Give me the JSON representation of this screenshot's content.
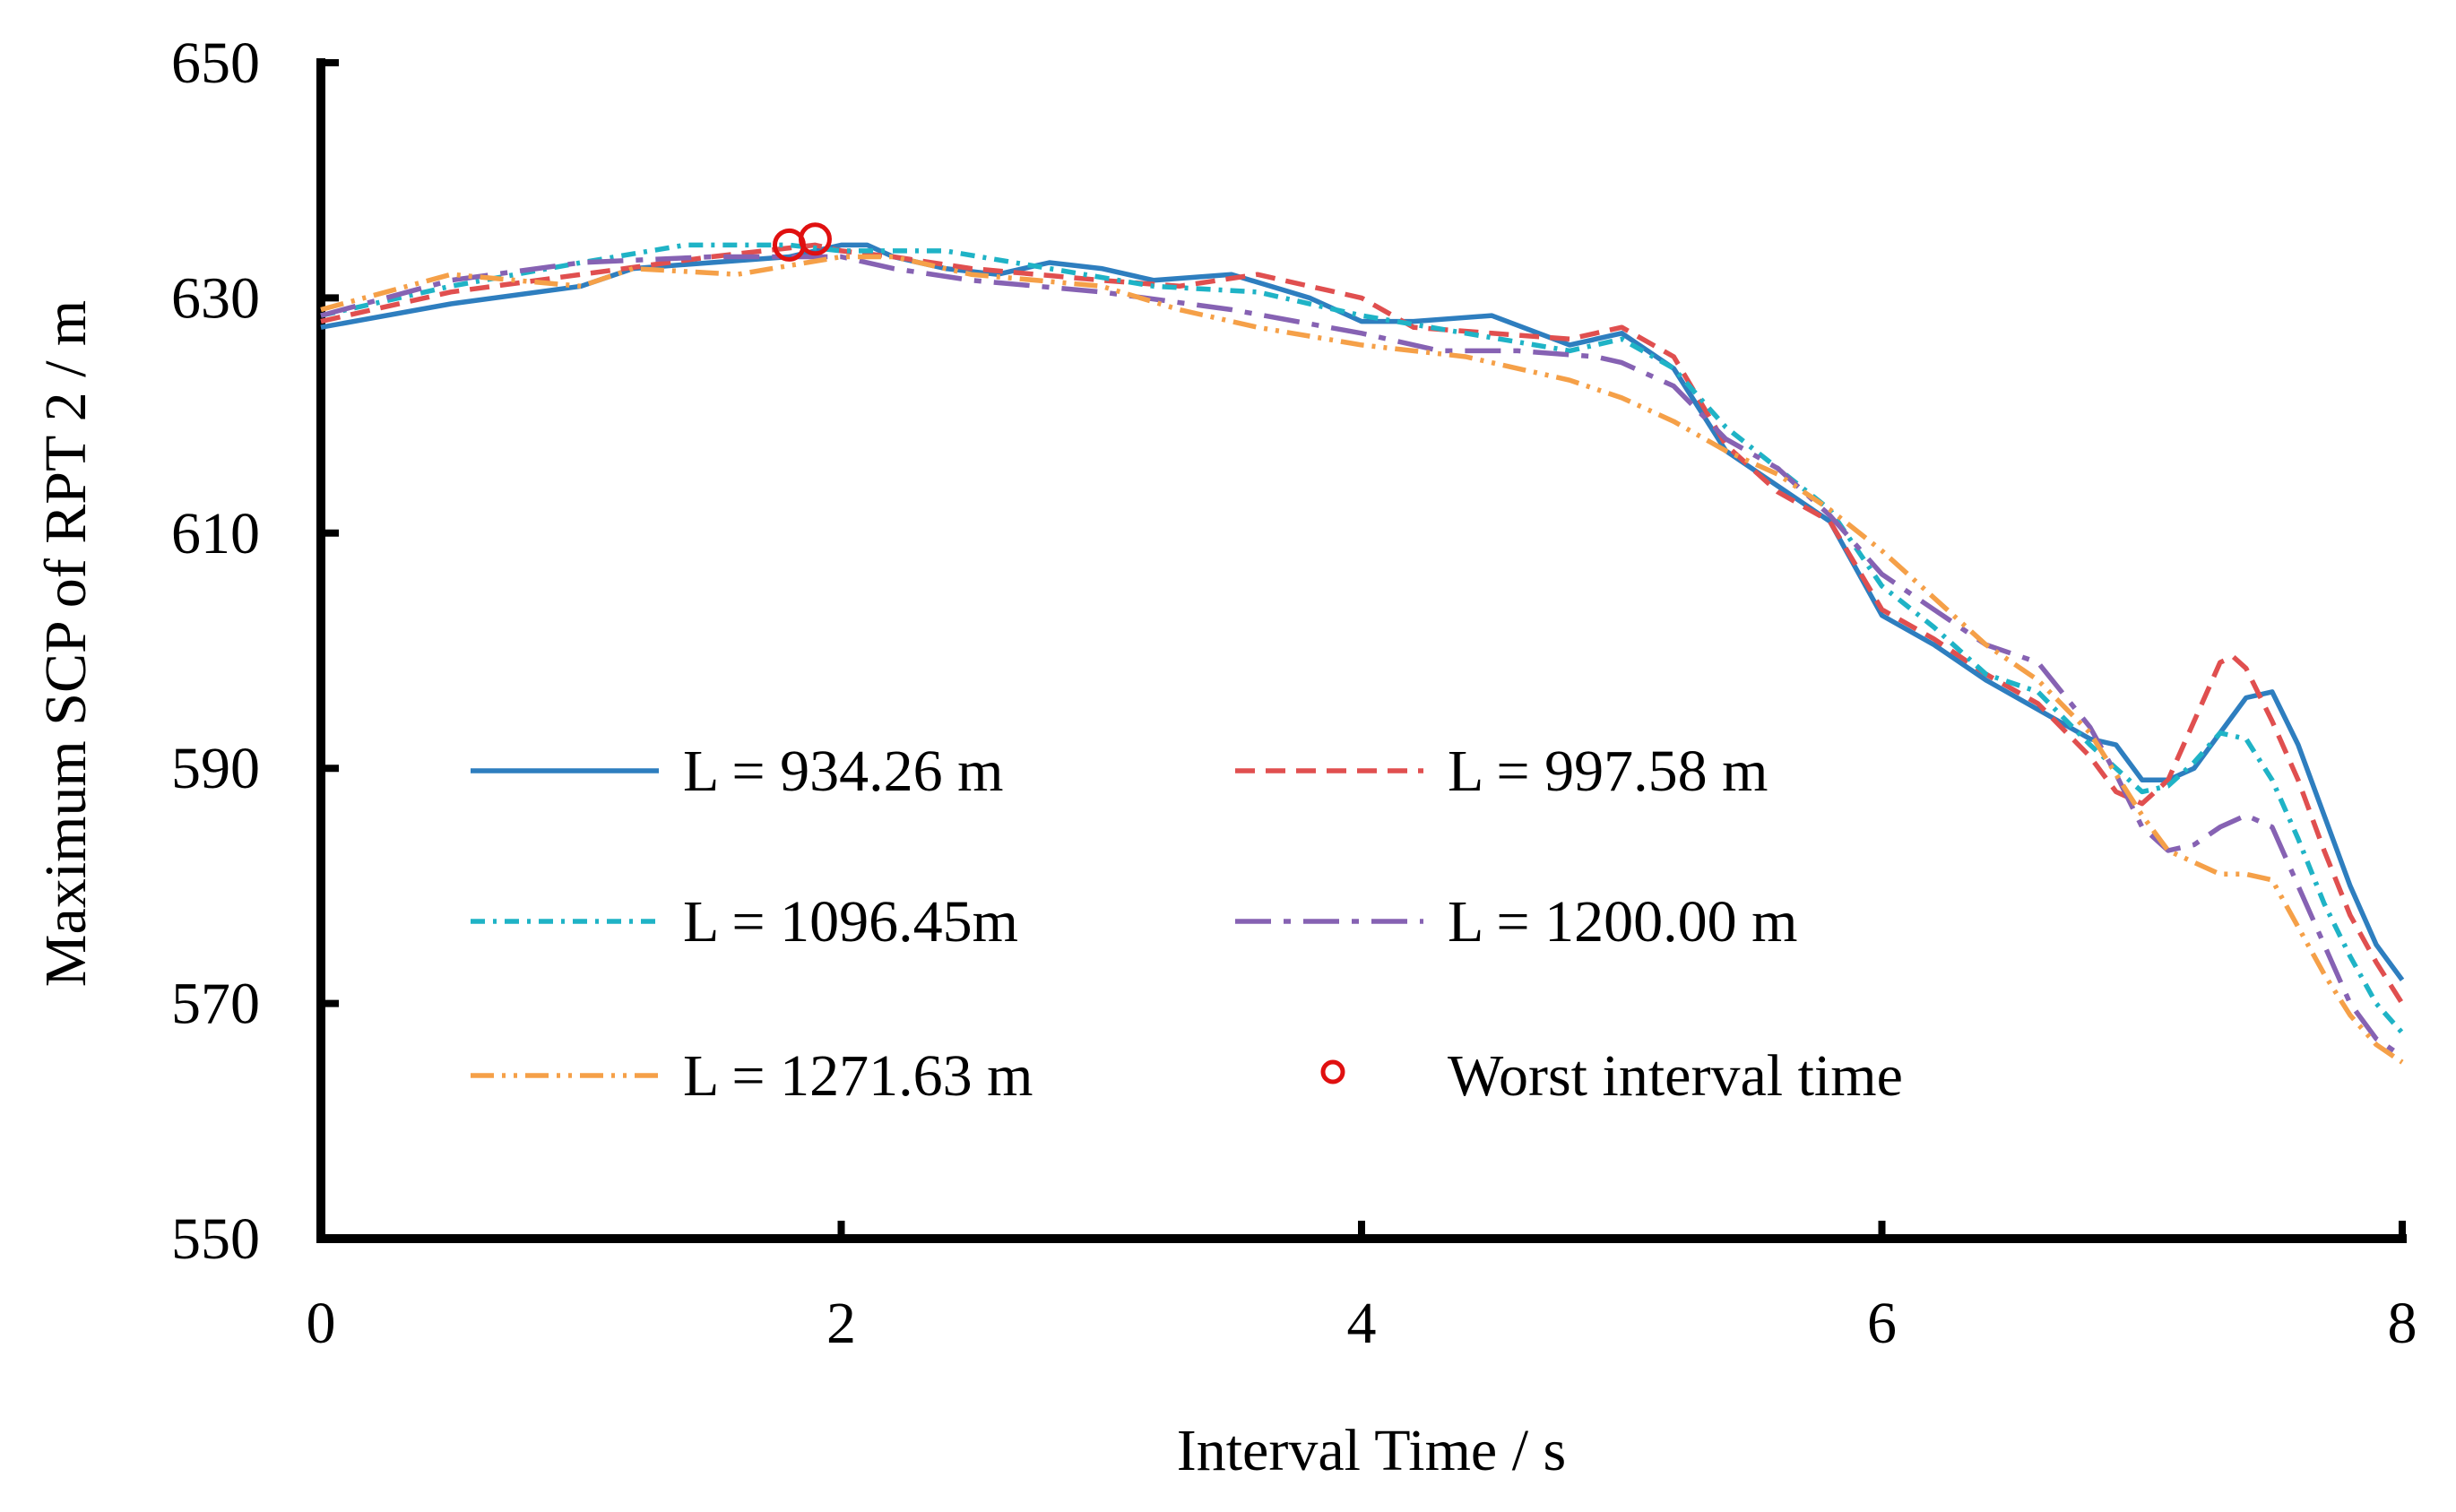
{
  "chart_data": {
    "type": "line",
    "xlabel": "Interval Time / s",
    "ylabel": "Maximum SCP of  RPT 2 / m",
    "xlim": [
      0,
      8
    ],
    "ylim": [
      550,
      650
    ],
    "xticks": [
      0,
      2,
      4,
      6,
      8
    ],
    "yticks": [
      550,
      570,
      590,
      610,
      630,
      650
    ],
    "grid": false,
    "legend_position": "inside, lower-left, 3 rows x 2 columns",
    "series": [
      {
        "name": "L = 934.26 m",
        "color": "#2e7ebf",
        "dash": "solid",
        "x": [
          0,
          0.5,
          1.0,
          1.2,
          1.5,
          1.8,
          2.0,
          2.1,
          2.2,
          2.4,
          2.6,
          2.8,
          3.0,
          3.2,
          3.5,
          3.8,
          4.0,
          4.2,
          4.5,
          4.8,
          5.0,
          5.2,
          5.4,
          5.6,
          5.8,
          6.0,
          6.2,
          6.4,
          6.6,
          6.8,
          6.9,
          7.0,
          7.1,
          7.2,
          7.3,
          7.4,
          7.5,
          7.6,
          7.7,
          7.8,
          7.9,
          8.0
        ],
        "y": [
          627.5,
          629.5,
          631.0,
          632.5,
          633.0,
          633.5,
          634.5,
          634.5,
          633.5,
          632.5,
          632.0,
          633.0,
          632.5,
          631.5,
          632.0,
          630.0,
          628.0,
          628.0,
          628.5,
          626.0,
          627.0,
          624.0,
          617.0,
          614.0,
          611.0,
          603.0,
          600.5,
          597.5,
          595.0,
          592.5,
          592.0,
          589.0,
          589.0,
          590.0,
          593.0,
          596.0,
          596.5,
          592.0,
          586.0,
          580.0,
          575.0,
          572.0
        ]
      },
      {
        "name": "L = 997.58 m",
        "color": "#e04f4f",
        "dash": "short-dash",
        "x": [
          0,
          0.5,
          1.0,
          1.5,
          1.9,
          2.0,
          2.2,
          2.5,
          3.0,
          3.3,
          3.6,
          4.0,
          4.2,
          4.5,
          4.8,
          5.0,
          5.2,
          5.4,
          5.6,
          5.8,
          6.0,
          6.2,
          6.4,
          6.6,
          6.8,
          6.9,
          7.0,
          7.1,
          7.2,
          7.3,
          7.35,
          7.4,
          7.5,
          7.6,
          7.7,
          7.8,
          7.9,
          8.0
        ],
        "y": [
          628.0,
          630.5,
          632.0,
          633.5,
          634.5,
          634.0,
          633.5,
          632.5,
          631.5,
          631.0,
          632.0,
          630.0,
          627.5,
          627.0,
          626.5,
          627.5,
          625.0,
          617.5,
          613.5,
          611.0,
          603.5,
          601.0,
          598.0,
          595.5,
          591.0,
          588.0,
          587.0,
          589.0,
          594.0,
          599.0,
          599.5,
          598.5,
          594.0,
          589.0,
          583.0,
          577.5,
          573.5,
          570.0
        ]
      },
      {
        "name": "L = 1096.45m",
        "color": "#1fb3c6",
        "dash": "dash-dot",
        "x": [
          0,
          0.5,
          1.0,
          1.4,
          1.8,
          2.0,
          2.4,
          2.8,
          3.2,
          3.6,
          4.0,
          4.4,
          4.8,
          5.0,
          5.2,
          5.4,
          5.6,
          5.8,
          6.0,
          6.2,
          6.4,
          6.6,
          6.8,
          6.9,
          7.0,
          7.1,
          7.2,
          7.3,
          7.4,
          7.5,
          7.6,
          7.7,
          7.8,
          7.9,
          8.0
        ],
        "y": [
          628.5,
          631.0,
          633.0,
          634.5,
          634.5,
          634.0,
          634.0,
          632.5,
          631.0,
          630.5,
          628.5,
          627.0,
          625.5,
          626.5,
          624.0,
          619.0,
          615.5,
          612.0,
          605.5,
          602.0,
          598.0,
          596.5,
          592.0,
          590.0,
          588.0,
          588.5,
          590.5,
          593.0,
          592.5,
          589.0,
          584.0,
          578.5,
          574.0,
          570.0,
          567.5
        ]
      },
      {
        "name": "L = 1200.00 m",
        "color": "#8662b3",
        "dash": "long-dash",
        "x": [
          0,
          0.5,
          1.0,
          1.5,
          2.0,
          2.2,
          2.5,
          3.0,
          3.5,
          4.0,
          4.3,
          4.6,
          4.9,
          5.0,
          5.2,
          5.4,
          5.6,
          5.8,
          6.0,
          6.2,
          6.4,
          6.6,
          6.8,
          6.9,
          7.0,
          7.1,
          7.2,
          7.3,
          7.4,
          7.5,
          7.6,
          7.7,
          7.8,
          7.9,
          8.0
        ],
        "y": [
          628.5,
          631.5,
          633.0,
          633.5,
          633.5,
          632.5,
          631.5,
          630.5,
          629.0,
          627.0,
          625.5,
          625.5,
          625.0,
          624.5,
          622.5,
          618.0,
          615.5,
          611.5,
          606.5,
          603.5,
          600.5,
          599.0,
          593.5,
          589.5,
          585.0,
          583.0,
          583.5,
          585.0,
          586.0,
          585.0,
          580.0,
          575.0,
          570.0,
          567.0,
          565.5
        ]
      },
      {
        "name": "L = 1271.63 m",
        "color": "#f5a048",
        "dash": "dash-dot-dot",
        "x": [
          0,
          0.5,
          1.0,
          1.2,
          1.6,
          2.0,
          2.2,
          2.5,
          3.0,
          3.3,
          3.6,
          4.0,
          4.4,
          4.8,
          5.0,
          5.2,
          5.4,
          5.6,
          5.8,
          6.0,
          6.2,
          6.4,
          6.6,
          6.8,
          6.9,
          7.0,
          7.1,
          7.2,
          7.3,
          7.4,
          7.5,
          7.6,
          7.7,
          7.8,
          7.9,
          8.0
        ],
        "y": [
          629.0,
          632.0,
          631.0,
          632.5,
          632.0,
          633.5,
          633.5,
          632.0,
          631.0,
          629.0,
          627.5,
          626.0,
          625.0,
          623.0,
          621.5,
          619.5,
          617.0,
          615.0,
          612.0,
          608.5,
          604.5,
          600.5,
          597.5,
          593.0,
          589.5,
          586.0,
          583.0,
          582.0,
          581.0,
          581.0,
          580.5,
          576.5,
          572.5,
          569.0,
          566.5,
          565.0
        ]
      }
    ],
    "markers": {
      "name": "Worst interval time",
      "color": "#e01010",
      "shape": "open-circle",
      "points": [
        {
          "x": 1.8,
          "y": 634.5
        },
        {
          "x": 1.9,
          "y": 635.0
        }
      ]
    }
  }
}
